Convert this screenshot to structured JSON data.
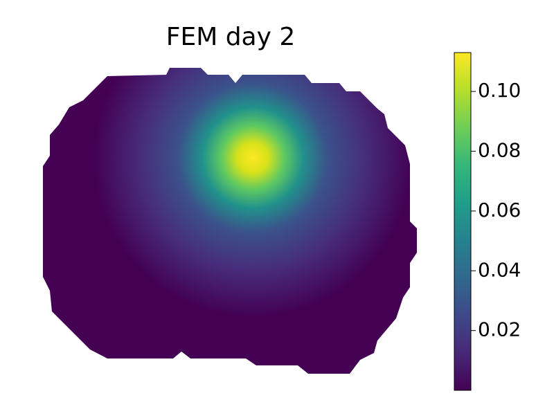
{
  "chart_data": {
    "type": "heatmap",
    "title": "FEM day 2",
    "colormap": "viridis",
    "clim": [
      0,
      0.113
    ],
    "cticks": [
      0.02,
      0.04,
      0.06,
      0.08,
      {
        "value": 0.1,
        "label": "0.10"
      }
    ]
  }
}
